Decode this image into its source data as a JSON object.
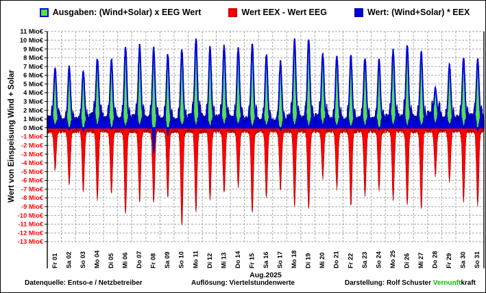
{
  "legend": {
    "items": [
      {
        "label": "Ausgaben: (Wind+Solar) x EEG Wert",
        "fill": "#55dd55",
        "border": "#0000dd"
      },
      {
        "label": "Wert EEX - Wert EEG",
        "fill": "#ff0000",
        "border": "#cc0000"
      },
      {
        "label": "Wert: (Wind+Solar) * EEX",
        "fill": "#0000dd",
        "border": "#0000aa"
      }
    ]
  },
  "y_axis": {
    "title": "Wert von Einspeisung Wind + Solar",
    "unit": "Mio€",
    "max": 11,
    "min": -13,
    "tick_step": 1,
    "positive_color": "#000000",
    "negative_color": "#ff0000",
    "tick_labels": [
      "11 Mio€",
      "10 Mio€",
      "9 Mio€",
      "8 Mio€",
      "7 Mio€",
      "6 Mio€",
      "5 Mio€",
      "4 Mio€",
      "3 Mio€",
      "2 Mio€",
      "1 Mio€",
      "0 Mio€",
      "-1 Mio€",
      "-2 Mio€",
      "-3 Mio€",
      "-4 Mio€",
      "-5 Mio€",
      "-6 Mio€",
      "-7 Mio€",
      "-8 Mio€",
      "-9 Mio€",
      "-10 Mio€",
      "-11 Mio€",
      "-12 Mio€",
      "-13 Mio€"
    ]
  },
  "x_axis": {
    "title": "Aug.2025",
    "labels": [
      "Fr 01",
      "Sa 02",
      "So 03",
      "Mo 04",
      "Di 05",
      "Mi 06",
      "Do 07",
      "Fr 08",
      "Sa 09",
      "So 10",
      "Mo 11",
      "Di 12",
      "Mi 13",
      "Do 14",
      "Fr 15",
      "Sa 16",
      "So 17",
      "Mo 18",
      "Di 19",
      "Mi 20",
      "Do 21",
      "Fr 22",
      "Sa 23",
      "So 24",
      "Mo 25",
      "Di 26",
      "Mi 27",
      "Do 28",
      "Fr 29",
      "Sa 30",
      "So 31"
    ]
  },
  "footer": {
    "left": "Datenquelle:  Entso-e  / Netzbetreiber",
    "center": "Auflösung: Viertelstundenwerte",
    "right_label": "Darstellung:  Rolf Schuster  ",
    "brand_green": "Vernunft",
    "brand_black": "kraft",
    "brand_green_color": "#00c000"
  },
  "chart_data": {
    "type": "area",
    "resolution": "Viertelstundenwerte (96 points per day)",
    "month": "Aug.2025",
    "ylim": [
      -13,
      11
    ],
    "grid": "dashed gray, 1 Mio€ horizontal steps, vertical line per day",
    "legend_position": "top-center",
    "days": [
      "Fr 01",
      "Sa 02",
      "So 03",
      "Mo 04",
      "Di 05",
      "Mi 06",
      "Do 07",
      "Fr 08",
      "Sa 09",
      "So 10",
      "Mo 11",
      "Di 12",
      "Mi 13",
      "Do 14",
      "Fr 15",
      "Sa 16",
      "So 17",
      "Mo 18",
      "Di 19",
      "Mi 20",
      "Do 21",
      "Fr 22",
      "Sa 23",
      "So 24",
      "Mo 25",
      "Di 26",
      "Mi 27",
      "Do 28",
      "Fr 29",
      "Sa 30",
      "So 31"
    ],
    "series": [
      {
        "name": "Ausgaben: (Wind+Solar) x EEG Wert",
        "fill": "#55dd55",
        "stroke": "#0000dd",
        "shape": "daily solar-shaped positive peaks, Mio€",
        "daily_peak": [
          6.8,
          7.0,
          6.4,
          7.9,
          7.7,
          9.2,
          9.4,
          9.0,
          8.4,
          8.8,
          10.1,
          9.2,
          9.4,
          9.2,
          9.4,
          8.3,
          7.5,
          10.0,
          10.2,
          8.5,
          8.3,
          8.2,
          8.0,
          7.7,
          8.8,
          9.3,
          8.6,
          4.5,
          7.2,
          7.9,
          7.8
        ],
        "night_base": [
          1.0,
          0.8,
          0.9,
          1.3,
          1.0,
          0.9,
          1.1,
          1.0,
          0.9,
          0.8,
          1.2,
          1.0,
          1.1,
          1.0,
          0.9,
          0.8,
          0.7,
          1.1,
          1.0,
          1.2,
          0.9,
          0.8,
          1.0,
          0.9,
          1.2,
          1.1,
          1.0,
          1.4,
          1.0,
          1.1,
          1.2
        ]
      },
      {
        "name": "Wert: (Wind+Solar) * EEX",
        "fill": "#0000dd",
        "stroke": "#0000aa",
        "shape": "low band with morning/evening shoulders, collapses (sometimes below zero) at midday",
        "daily_shoulder_peak": [
          1.4,
          1.2,
          1.1,
          1.7,
          1.6,
          1.5,
          1.7,
          1.6,
          1.4,
          1.3,
          1.9,
          1.7,
          1.6,
          1.5,
          1.7,
          1.3,
          1.1,
          1.8,
          1.9,
          1.6,
          1.4,
          1.5,
          1.3,
          1.2,
          1.7,
          1.8,
          1.6,
          1.9,
          1.3,
          1.4,
          1.5
        ],
        "daily_midday_min": [
          0.2,
          -0.3,
          -0.5,
          0.2,
          -0.2,
          0.1,
          0.2,
          -2.9,
          -0.9,
          0.3,
          0.2,
          0.1,
          0.3,
          0.4,
          0.1,
          0.2,
          -0.4,
          0.2,
          0.1,
          0.3,
          0.2,
          0.1,
          0.2,
          -0.3,
          0.2,
          0.1,
          0.2,
          0.4,
          0.3,
          0.1,
          -0.5
        ]
      },
      {
        "name": "Wert EEX - Wert EEG",
        "fill": "#ff0000",
        "stroke": "#b00000",
        "shape": "negative daily spikes mirroring the solar peaks, Mio€",
        "daily_min": [
          -4.8,
          -6.5,
          -7.3,
          -8.2,
          -7.6,
          -9.9,
          -8.4,
          -8.6,
          -8.0,
          -11.3,
          -9.5,
          -8.2,
          -7.6,
          -6.8,
          -9.7,
          -8.0,
          -7.1,
          -8.9,
          -9.3,
          -5.8,
          -7.0,
          -9.0,
          -7.8,
          -7.2,
          -8.2,
          -8.8,
          -9.3,
          -5.5,
          -6.2,
          -8.5,
          -8.8
        ]
      }
    ]
  }
}
